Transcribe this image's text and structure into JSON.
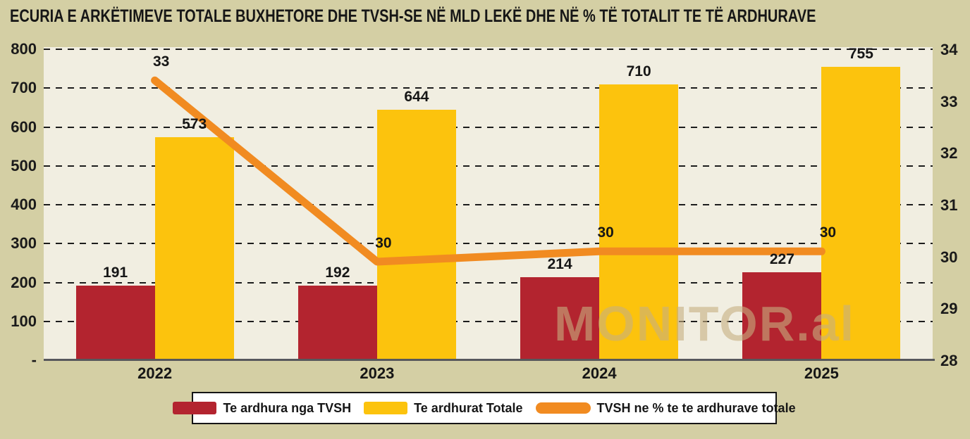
{
  "title": "ECURIA E ARKËTIMEVE TOTALE BUXHETORE DHE TVSH-SE NË MLD LEKË DHE NË % TË TOTALIT TE TË ARDHURAVE",
  "watermark": "MONITOR.al",
  "colors": {
    "background": "#d4cfa4",
    "plot_background": "#f1eee1",
    "tvsh_bar": "#b3242f",
    "total_bar": "#fcc30d",
    "line": "#f18b21",
    "axis_line": "#57585c",
    "text": "#161616",
    "gridline": "#1c1c1c",
    "legend_background": "#ffffff",
    "watermark_color": "rgba(198,175,128,0.60)"
  },
  "chart_data": {
    "type": "bar",
    "subtype": "grouped bars with secondary-axis line",
    "categories": [
      "2022",
      "2023",
      "2024",
      "2025"
    ],
    "series": [
      {
        "name": "Te ardhura nga TVSH",
        "type": "bar",
        "axis": "left",
        "values": [
          191,
          192,
          214,
          227
        ],
        "labels": [
          "191",
          "192",
          "214",
          "227"
        ],
        "color": "#b3242f"
      },
      {
        "name": "Te ardhurat Totale",
        "type": "bar",
        "axis": "left",
        "values": [
          573,
          644,
          710,
          755
        ],
        "labels": [
          "573",
          "644",
          "710",
          "755"
        ],
        "color": "#fcc30d"
      },
      {
        "name": "TVSH ne % te te ardhurave totale",
        "type": "line",
        "axis": "right",
        "values": [
          33.4,
          29.9,
          30.1,
          30.1
        ],
        "labels": [
          "33",
          "30",
          "30",
          "30"
        ],
        "color": "#f18b21"
      }
    ],
    "left_axis": {
      "min": 0,
      "max": 800,
      "tick_labels": [
        "800",
        "700",
        "600",
        "500",
        "400",
        "300",
        "200",
        "100",
        "-"
      ]
    },
    "right_axis": {
      "min": 28,
      "max": 34,
      "tick_labels": [
        "34",
        "33",
        "32",
        "31",
        "30",
        "29",
        "28"
      ]
    },
    "grid": "horizontal dashed",
    "legend_position": "bottom"
  },
  "legend": {
    "items": [
      {
        "label": "Te ardhura nga TVSH",
        "swatch": "rect",
        "color": "#b3242f"
      },
      {
        "label": "Te ardhurat Totale",
        "swatch": "rect",
        "color": "#fcc30d"
      },
      {
        "label": "TVSH ne % te te ardhurave totale",
        "swatch": "pill",
        "color": "#f18b21"
      }
    ]
  }
}
